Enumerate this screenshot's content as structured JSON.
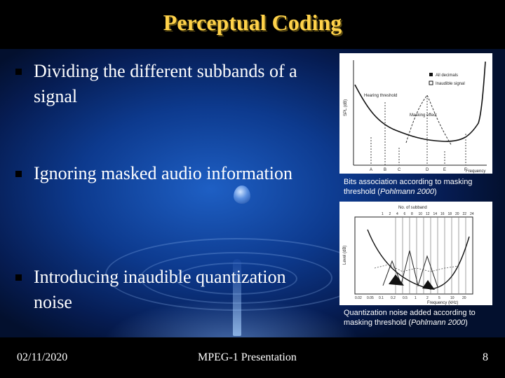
{
  "slide": {
    "title": "Perceptual Coding",
    "bullets": [
      {
        "text": "Dividing the different subbands of a signal"
      },
      {
        "text": "Ignoring masked audio information"
      },
      {
        "text": "Introducing inaudible quantization noise"
      }
    ],
    "figure1": {
      "legend": [
        "All decimals",
        "Inaudible signal"
      ],
      "labels": [
        "Hearing threshold",
        "Masking effect",
        "SPL (dB)",
        "Frequency"
      ],
      "ticks": [
        "A",
        "B",
        "C",
        "D",
        "E",
        "F"
      ],
      "caption_main": "Bits association according to masking threshold (",
      "caption_italic": "Pohlmann 2000",
      "caption_end": ")"
    },
    "figure2": {
      "top_label": "No. of subband",
      "subbands": [
        "1",
        "2",
        "4",
        "6",
        "8",
        "10",
        "12",
        "14",
        "16",
        "18",
        "20",
        "22",
        "24"
      ],
      "ylabel": "Level (dB)",
      "xlabel": "Frequency (kHz)",
      "xticks": [
        "0.02",
        "0.05",
        "0.1",
        "0.2",
        "0.5",
        "1",
        "2",
        "5",
        "10",
        "20"
      ],
      "caption_main": "Quantization noise added according to masking threshold (",
      "caption_italic": "Pohlmann 2000",
      "caption_end": ")"
    },
    "footer": {
      "date": "02/11/2020",
      "center": "MPEG-1 Presentation",
      "page": "8"
    },
    "colors": {
      "title": "#ffd24a",
      "background": "#0d3a8e",
      "text": "#ffffff"
    }
  }
}
